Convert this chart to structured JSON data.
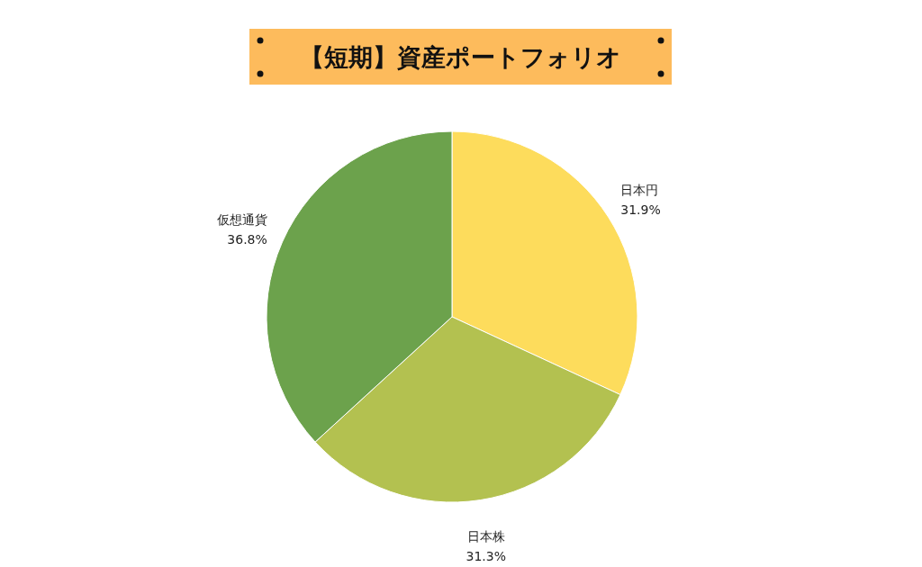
{
  "chart_data": {
    "type": "pie",
    "title": "【短期】資産ポートフォリオ",
    "categories": [
      "日本円",
      "日本株",
      "仮想通貨"
    ],
    "values": [
      31.9,
      31.3,
      36.8
    ],
    "colors": [
      "#fddc5c",
      "#b3c150",
      "#6ca24c"
    ],
    "value_labels": [
      "31.9%",
      "31.3%",
      "36.8%"
    ]
  }
}
